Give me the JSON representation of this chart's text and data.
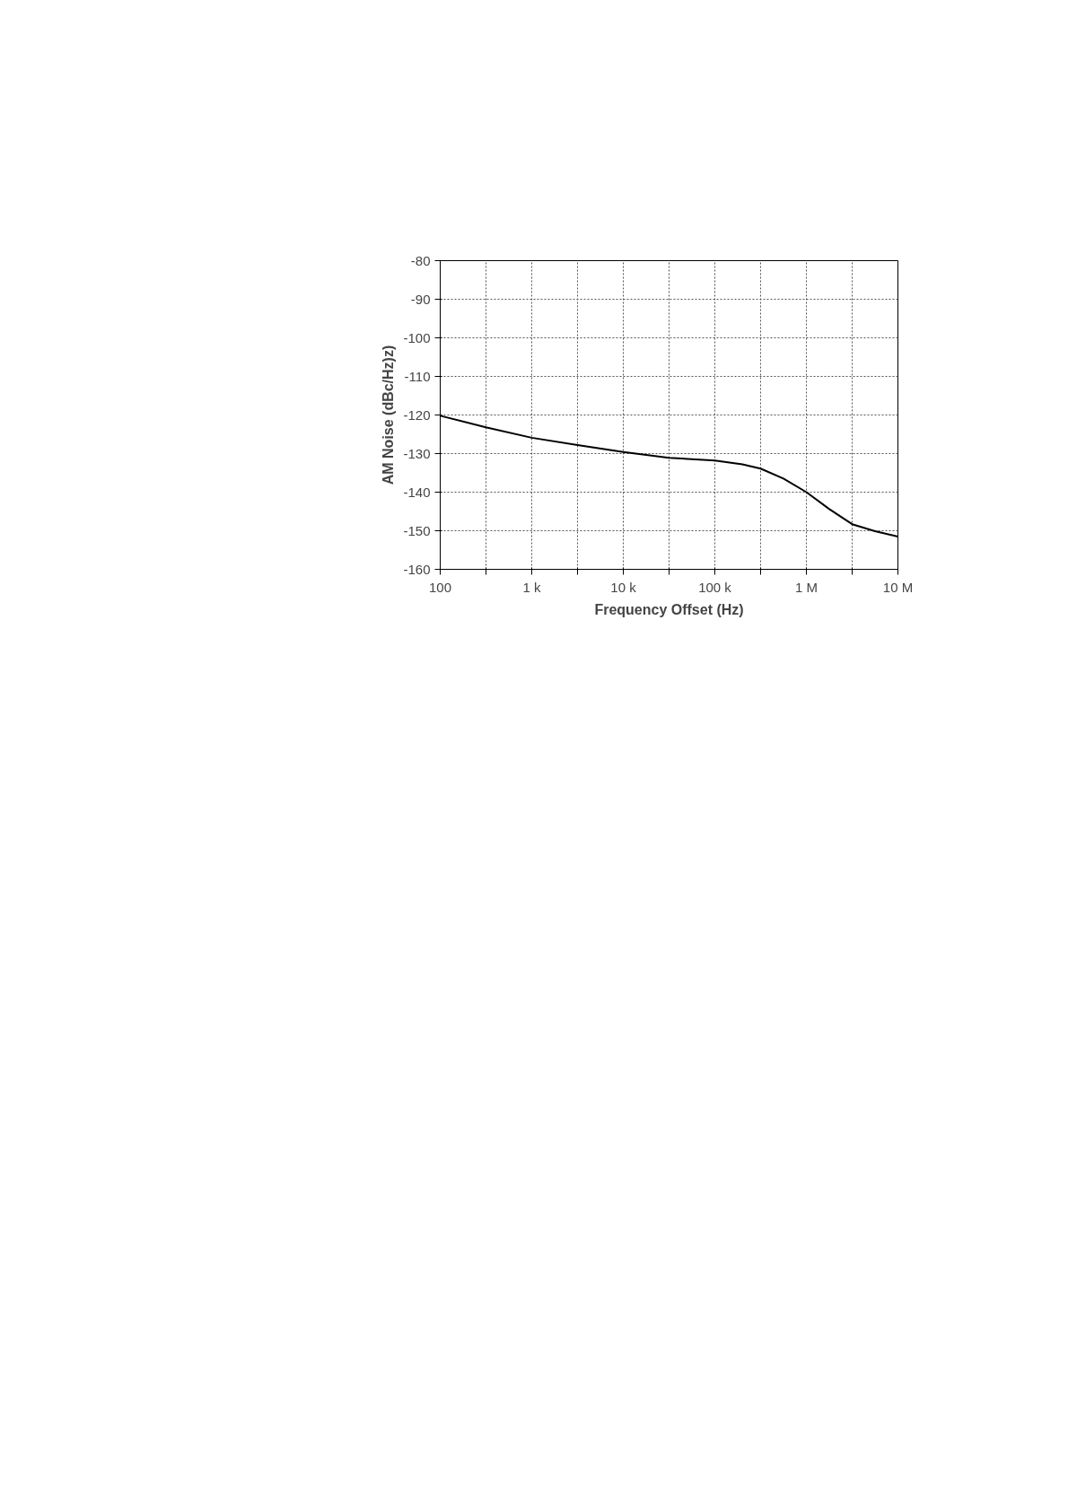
{
  "chart_data": {
    "type": "line",
    "xlabel": "Frequency Offset (Hz)",
    "ylabel": "AM Noise (dBc/Hz)z)",
    "log": "x",
    "grid": true,
    "marker": "none",
    "line_style": "solid",
    "xlim": [
      100,
      10000000
    ],
    "ylim": [
      -160,
      -80
    ],
    "xticks": [
      {
        "value": 100,
        "label": "100"
      },
      {
        "value": 316.2,
        "label": null
      },
      {
        "value": 1000,
        "label": "1 k"
      },
      {
        "value": 3162,
        "label": null
      },
      {
        "value": 10000,
        "label": "10 k"
      },
      {
        "value": 31620,
        "label": null
      },
      {
        "value": 100000,
        "label": "100 k"
      },
      {
        "value": 316200,
        "label": null
      },
      {
        "value": 1000000,
        "label": "1 M"
      },
      {
        "value": 3162000,
        "label": null
      },
      {
        "value": 10000000,
        "label": "10 M"
      }
    ],
    "yticks": [
      -160,
      -150,
      -140,
      -130,
      -120,
      -110,
      -100,
      -90,
      -80
    ],
    "series": [
      {
        "color": "#000000",
        "x": [
          100,
          316,
          1000,
          3160,
          10000,
          31600,
          100000,
          200000,
          316000,
          562000,
          1000000,
          1780000,
          3160000,
          5620000,
          10000000
        ],
        "values": [
          -120.2,
          -123.2,
          -125.9,
          -127.8,
          -129.6,
          -131.1,
          -131.8,
          -132.8,
          -133.9,
          -136.5,
          -140,
          -144.4,
          -148.3,
          -150.1,
          -151.5
        ]
      }
    ]
  }
}
